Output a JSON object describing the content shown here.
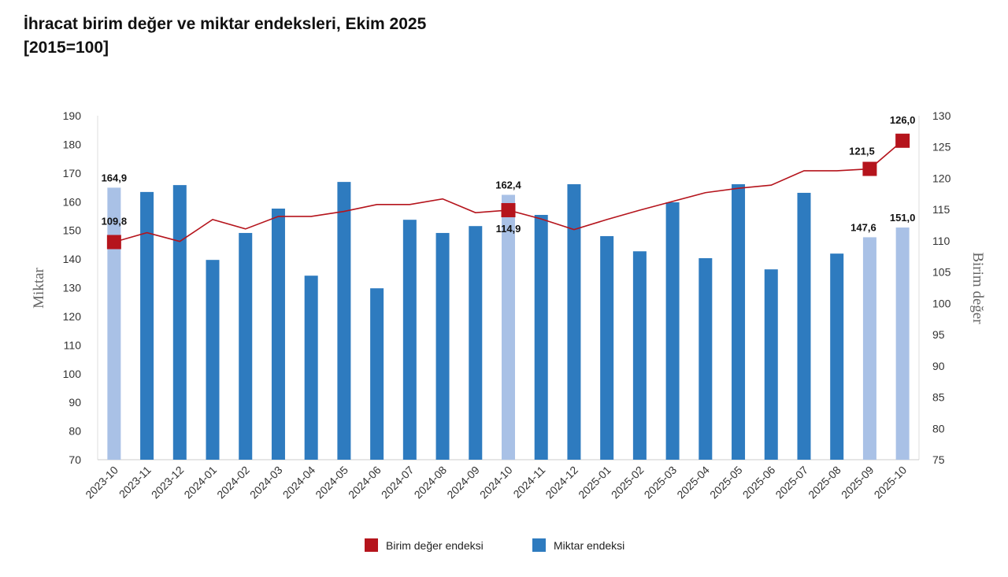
{
  "chart_data": {
    "type": "bar+line",
    "title": "İhracat birim değer ve miktar endeksleri, Ekim 2025",
    "subtitle": "[2015=100]",
    "categories": [
      "2023-10",
      "2023-11",
      "2023-12",
      "2024-01",
      "2024-02",
      "2024-03",
      "2024-04",
      "2024-05",
      "2024-06",
      "2024-07",
      "2024-08",
      "2024-09",
      "2024-10",
      "2024-11",
      "2024-12",
      "2025-01",
      "2025-02",
      "2025-03",
      "2025-04",
      "2025-05",
      "2025-06",
      "2025-07",
      "2025-08",
      "2025-09",
      "2025-10"
    ],
    "series": [
      {
        "name": "Miktar endeksi",
        "type": "bar",
        "axis": "left",
        "color": "#2e7bbf",
        "highlight_color": "#a9c1e6",
        "highlighted": [
          "2023-10",
          "2024-10",
          "2025-09",
          "2025-10"
        ],
        "values": [
          164.9,
          163.4,
          165.8,
          139.7,
          149.1,
          157.6,
          134.2,
          166.9,
          129.8,
          153.7,
          149.1,
          151.5,
          162.4,
          155.4,
          166.1,
          148.0,
          142.7,
          159.8,
          140.3,
          166.1,
          136.4,
          163.1,
          141.9,
          147.6,
          151.0
        ]
      },
      {
        "name": "Birim değer endeksi",
        "type": "line",
        "axis": "right",
        "color": "#b5141c",
        "marked": [
          "2023-10",
          "2024-10",
          "2025-09",
          "2025-10"
        ],
        "values": [
          109.8,
          111.3,
          109.9,
          113.4,
          111.9,
          113.9,
          113.9,
          114.7,
          115.8,
          115.8,
          116.7,
          114.5,
          114.9,
          113.5,
          111.8,
          113.4,
          114.9,
          116.3,
          117.7,
          118.4,
          118.9,
          121.2,
          121.2,
          121.5,
          126.0
        ]
      }
    ],
    "data_labels": {
      "bar": {
        "2023-10": "164,9",
        "2024-10": "162,4",
        "2025-09": "147,6",
        "2025-10": "151,0"
      },
      "line": {
        "2023-10": "109,8",
        "2024-10": "114,9",
        "2025-09": "121,5",
        "2025-10": "126,0"
      }
    },
    "ylabel_left": "Miktar",
    "ylabel_right": "Birim değer",
    "ylim_left": [
      70,
      190
    ],
    "yticks_left": [
      70,
      80,
      90,
      100,
      110,
      120,
      130,
      140,
      150,
      160,
      170,
      180,
      190
    ],
    "ylim_right": [
      75,
      130
    ],
    "yticks_right": [
      75,
      80,
      85,
      90,
      95,
      100,
      105,
      110,
      115,
      120,
      125,
      130
    ],
    "grid": false,
    "legend_position": "bottom",
    "legend": [
      "Birim değer endeksi",
      "Miktar endeksi"
    ]
  }
}
